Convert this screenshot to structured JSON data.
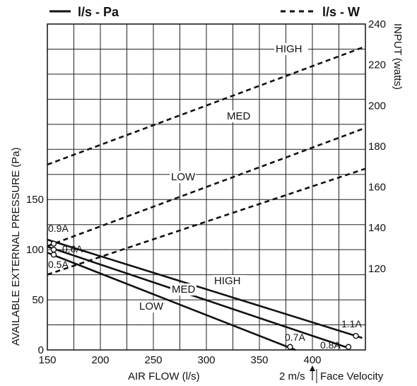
{
  "chart_data": {
    "type": "line",
    "legend": {
      "solid": "l/s - Pa",
      "dashed": "l/s - W",
      "placement": "top"
    },
    "xlabel": "AIR FLOW (l/s)",
    "ylabel_left": "AVAILABLE EXTERNAL PRESSURE (Pa)",
    "ylabel_right": "INPUT (watts)",
    "xlim": [
      150,
      450
    ],
    "ylim_left": [
      0,
      325
    ],
    "ylim_right": [
      80,
      240
    ],
    "x_ticks": [
      "150",
      "200",
      "250",
      "300",
      "350",
      "400"
    ],
    "y_left_ticks": [
      {
        "v": 0,
        "label": "0"
      },
      {
        "v": 50,
        "label": "50"
      },
      {
        "v": 100,
        "label": "100"
      },
      {
        "v": 150,
        "label": "150"
      }
    ],
    "y_right_ticks": [
      {
        "v": 120,
        "label": "120"
      },
      {
        "v": 140,
        "label": "140"
      },
      {
        "v": 160,
        "label": "160"
      },
      {
        "v": 180,
        "label": "180"
      },
      {
        "v": 200,
        "label": "200"
      },
      {
        "v": 220,
        "label": "220"
      },
      {
        "v": 240,
        "label": "240"
      }
    ],
    "face_velocity": {
      "label": "2 m/s",
      "text": "Face Velocity",
      "x": 392
    },
    "grid": true,
    "pressure_series": [
      {
        "name": "HIGH",
        "points": [
          [
            150,
            110
          ],
          [
            447,
            12
          ]
        ],
        "start_marker": {
          "x": 156,
          "y": 106,
          "label": "0.9A"
        },
        "end_marker": {
          "x": 441,
          "y": 14,
          "label": "1.1A"
        }
      },
      {
        "name": "MED",
        "points": [
          [
            150,
            103
          ],
          [
            434,
            2
          ]
        ],
        "start_marker": {
          "x": 156,
          "y": 100,
          "label": "0.6A"
        },
        "end_marker": {
          "x": 434,
          "y": 3,
          "label": "0.8A"
        }
      },
      {
        "name": "LOW",
        "points": [
          [
            150,
            97
          ],
          [
            384,
            0
          ]
        ],
        "start_marker": {
          "x": 156,
          "y": 95,
          "label": "0.5A"
        },
        "end_marker": {
          "x": 379,
          "y": 3,
          "label": "0.7A"
        }
      }
    ],
    "power_series": [
      {
        "name": "HIGH",
        "points": [
          [
            150,
            171
          ],
          [
            450,
            229
          ]
        ]
      },
      {
        "name": "MED",
        "points": [
          [
            150,
            131
          ],
          [
            450,
            189
          ]
        ]
      },
      {
        "name": "LOW",
        "points": [
          [
            150,
            117
          ],
          [
            450,
            169
          ]
        ]
      }
    ]
  }
}
